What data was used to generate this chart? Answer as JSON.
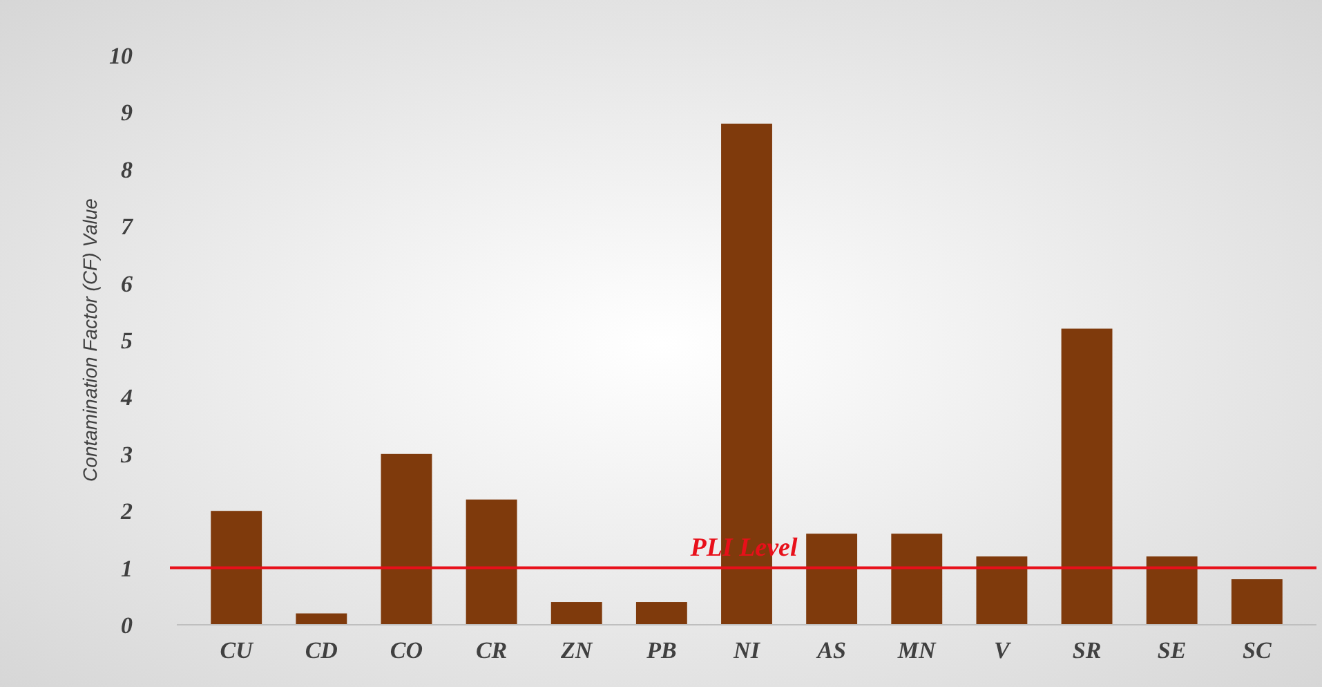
{
  "chart_data": {
    "type": "bar",
    "ylabel": "Contamination Factor (CF) Value",
    "categories": [
      "CU",
      "CD",
      "CO",
      "CR",
      "ZN",
      "PB",
      "NI",
      "AS",
      "MN",
      "V",
      "SR",
      "SE",
      "SC"
    ],
    "values": [
      2.0,
      0.2,
      3.0,
      2.2,
      0.4,
      0.4,
      8.8,
      1.6,
      1.6,
      1.2,
      5.2,
      1.2,
      0.8
    ],
    "color": "#7f3a0c",
    "ylim": [
      0,
      10
    ],
    "yticks": [
      0,
      1,
      2,
      3,
      4,
      5,
      6,
      7,
      8,
      9,
      10
    ],
    "grid": false,
    "ref_lines": [
      {
        "axis": "y",
        "value": 1,
        "label": "PLI Level",
        "color": "#e8101a"
      }
    ]
  }
}
